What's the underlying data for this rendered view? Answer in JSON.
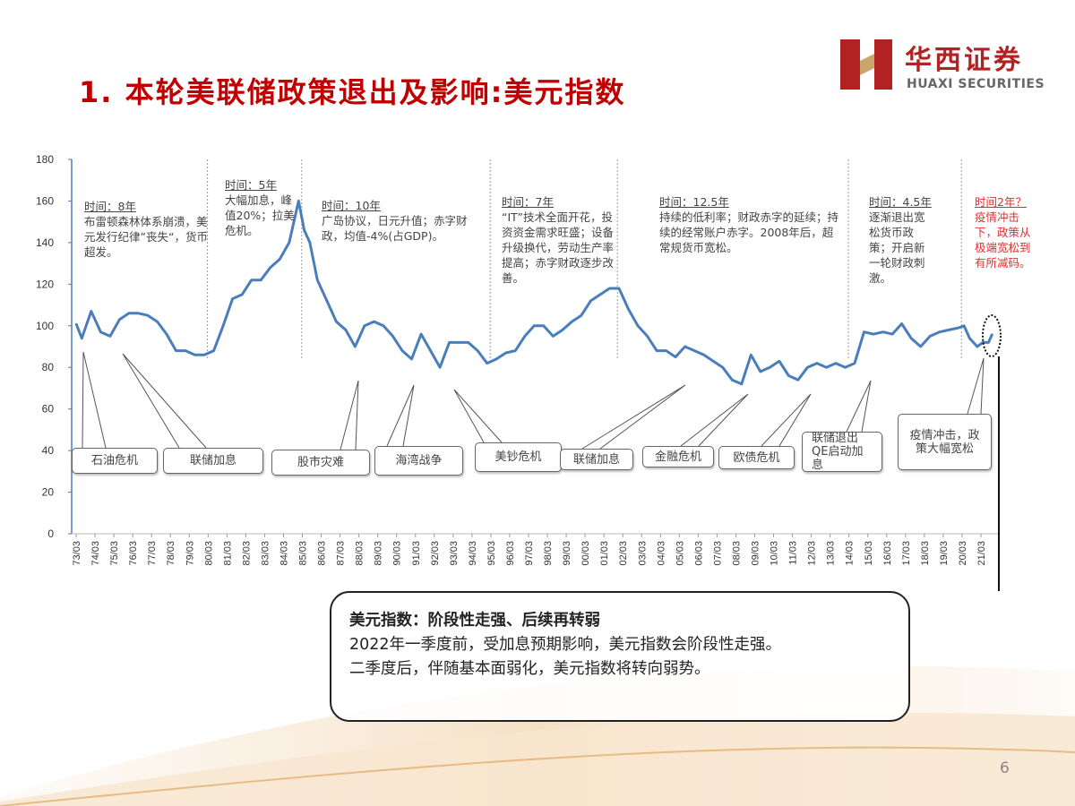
{
  "header": {
    "title": "1.  本轮美联储政策退出及影响:美元指数",
    "logo_cn": "华西证券",
    "logo_en": "HUAXI SECURITIES",
    "brand_color": "#b22222"
  },
  "annotations": [
    {
      "head": "时间：8年",
      "body": "布雷顿森林体系崩溃，美元发行纪律”丧失“，货币超发。"
    },
    {
      "head": "时间：5年",
      "body": "大幅加息，峰值20%；拉美危机。"
    },
    {
      "head": "时间：10年",
      "body": "广岛协议，日元升值；赤字财政，均值-4%(占GDP)。"
    },
    {
      "head": "时间：7年",
      "body": "“IT”技术全面开花，投资资金需求旺盛；设备升级换代，劳动生产率提高；赤字财政逐步改善。"
    },
    {
      "head": "时间：12.5年",
      "body": "持续的低利率；财政赤字的延续；持续的经常账户赤字。2008年后，超常规货币宽松。"
    },
    {
      "head": "时间：4.5年",
      "body": "逐渐退出宽松货币政策；开启新一轮财政刺激。"
    },
    {
      "head": "时间2年？",
      "body": "疫情冲击下，政策从极端宽松到有所减码。"
    }
  ],
  "events": [
    "石油危机",
    "联储加息",
    "股市灾难",
    "海湾战争",
    "美钞危机",
    "联储加息",
    "金融危机",
    "欧债危机",
    "联储退出QE启动加息",
    "疫情冲击，政策大幅宽松"
  ],
  "summary": {
    "heading": "美元指数：阶段性走强、后续再转弱",
    "line1": "2022年一季度前，受加息预期影响，美元指数会阶段性走强。",
    "line2": "二季度后，伴随基本面弱化，美元指数将转向弱势。"
  },
  "page_number": "6",
  "chart_data": {
    "type": "line",
    "title": "",
    "xlabel": "",
    "ylabel": "",
    "ylim": [
      0,
      180
    ],
    "yticks": [
      0,
      20,
      40,
      60,
      80,
      100,
      120,
      140,
      160,
      180
    ],
    "xtick_labels": [
      "73/03",
      "74/03",
      "75/03",
      "76/03",
      "77/03",
      "78/03",
      "79/03",
      "80/03",
      "81/03",
      "82/03",
      "83/03",
      "84/03",
      "85/03",
      "86/03",
      "87/03",
      "88/03",
      "89/03",
      "90/03",
      "91/03",
      "92/03",
      "93/03",
      "94/03",
      "95/03",
      "96/03",
      "97/03",
      "98/03",
      "99/03",
      "00/03",
      "01/03",
      "02/03",
      "03/03",
      "04/03",
      "05/03",
      "06/03",
      "07/03",
      "08/03",
      "09/03",
      "10/03",
      "11/03",
      "12/03",
      "13/03",
      "14/03",
      "15/03",
      "16/03",
      "17/03",
      "18/03",
      "19/03",
      "20/03",
      "21/03"
    ],
    "series_color": "#4a7ebb",
    "grid": false,
    "period_dividers": [
      "1980/03",
      "1985/03",
      "1995/03",
      "2001/12",
      "2014/03",
      "2020/03"
    ],
    "x": [
      1973.2,
      1973.5,
      1974.0,
      1974.5,
      1975.0,
      1975.5,
      1976.0,
      1976.5,
      1977.0,
      1977.5,
      1978.0,
      1978.5,
      1979.0,
      1979.5,
      1980.0,
      1980.5,
      1981.0,
      1981.5,
      1982.0,
      1982.5,
      1983.0,
      1983.5,
      1984.0,
      1984.5,
      1985.0,
      1985.3,
      1985.6,
      1986.0,
      1986.5,
      1987.0,
      1987.5,
      1988.0,
      1988.5,
      1989.0,
      1989.5,
      1990.0,
      1990.5,
      1991.0,
      1991.5,
      1992.0,
      1992.5,
      1993.0,
      1993.5,
      1994.0,
      1994.5,
      1995.0,
      1995.5,
      1996.0,
      1996.5,
      1997.0,
      1997.5,
      1998.0,
      1998.5,
      1999.0,
      1999.5,
      2000.0,
      2000.5,
      2001.0,
      2001.5,
      2002.0,
      2002.5,
      2003.0,
      2003.5,
      2004.0,
      2004.5,
      2005.0,
      2005.5,
      2006.0,
      2006.5,
      2007.0,
      2007.5,
      2008.0,
      2008.5,
      2009.0,
      2009.5,
      2010.0,
      2010.5,
      2011.0,
      2011.5,
      2012.0,
      2012.5,
      2013.0,
      2013.5,
      2014.0,
      2014.5,
      2015.0,
      2015.5,
      2016.0,
      2016.5,
      2017.0,
      2017.5,
      2018.0,
      2018.5,
      2019.0,
      2019.5,
      2020.0,
      2020.3,
      2020.6,
      2021.0,
      2021.3,
      2021.6,
      2021.8
    ],
    "values": [
      101,
      94,
      107,
      97,
      95,
      103,
      106,
      106,
      105,
      102,
      96,
      88,
      88,
      86,
      86,
      88,
      100,
      113,
      115,
      122,
      122,
      128,
      132,
      140,
      160,
      146,
      140,
      122,
      112,
      102,
      98,
      90,
      100,
      102,
      100,
      95,
      88,
      84,
      96,
      88,
      80,
      92,
      92,
      92,
      88,
      82,
      84,
      87,
      88,
      95,
      100,
      100,
      95,
      98,
      102,
      105,
      112,
      115,
      118,
      118,
      108,
      100,
      95,
      88,
      88,
      85,
      90,
      88,
      86,
      83,
      80,
      74,
      72,
      86,
      78,
      80,
      83,
      76,
      74,
      80,
      82,
      80,
      82,
      80,
      82,
      97,
      96,
      97,
      96,
      101,
      94,
      90,
      95,
      97,
      98,
      99,
      100,
      94,
      90,
      92,
      92,
      96
    ]
  }
}
